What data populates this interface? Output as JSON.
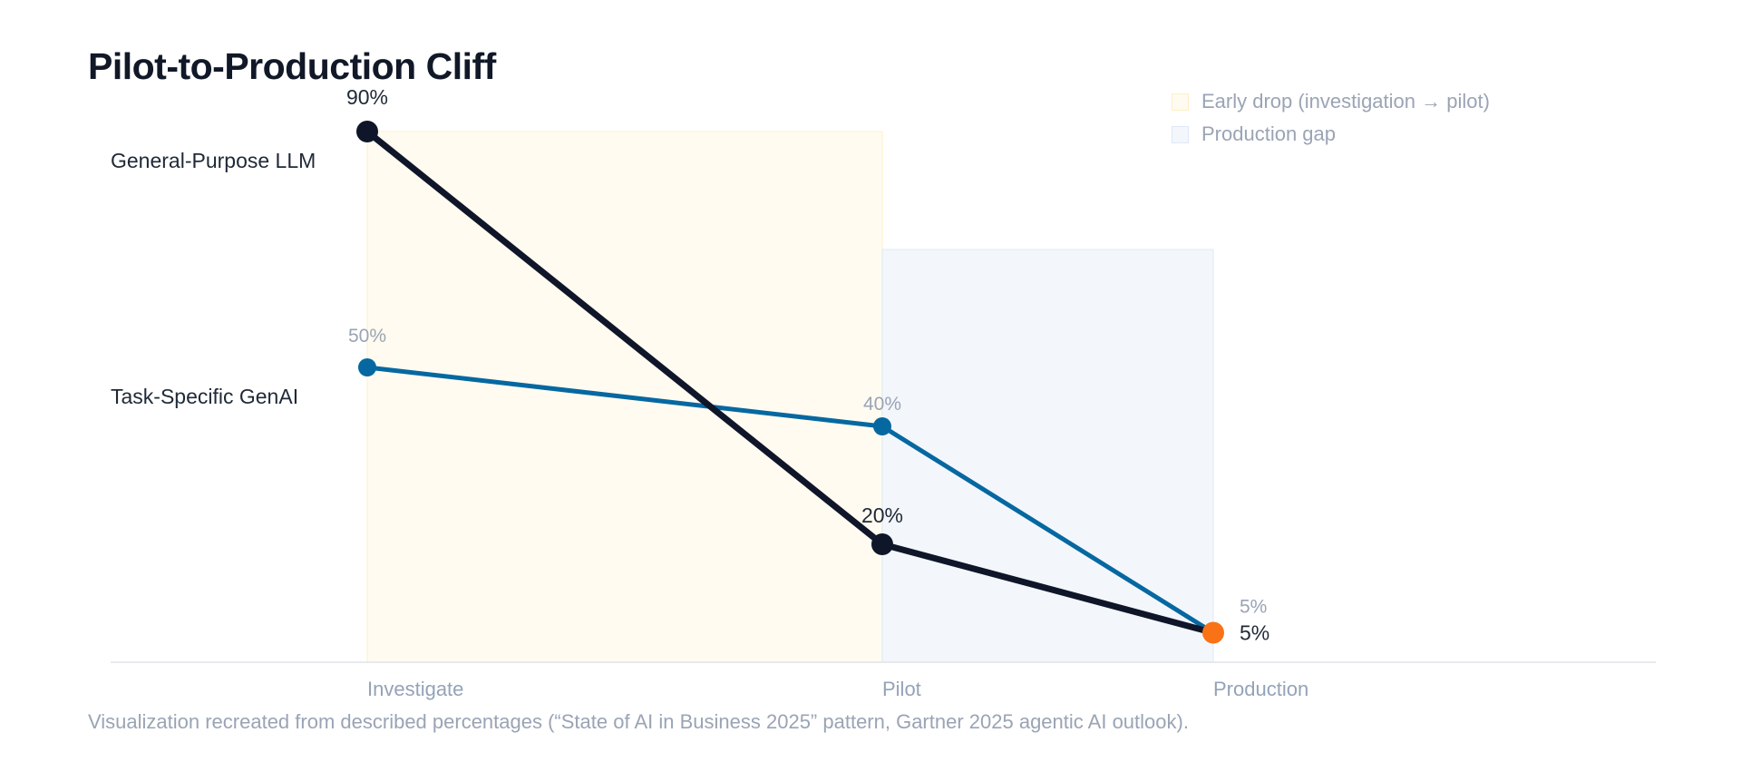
{
  "title": "Pilot-to-Production Cliff",
  "legend": [
    {
      "label": "Early drop (investigation → pilot)",
      "fill": "#fffbf0",
      "stroke": "#fdf0c8"
    },
    {
      "label": "Production gap",
      "fill": "#f3f7fc",
      "stroke": "#dde8f6"
    }
  ],
  "caption": "Visualization recreated from described percentages (“State of AI in Business 2025” pattern, Gartner 2025 agentic AI outlook).",
  "chart_data": {
    "type": "line",
    "title": "Pilot-to-Production Cliff",
    "categories": [
      "Investigate",
      "Pilot",
      "Production"
    ],
    "ylim": [
      0,
      100
    ],
    "grid": false,
    "legend_position": "top-right",
    "series": [
      {
        "name": "General-Purpose LLM",
        "values": [
          90,
          20,
          5
        ],
        "labels": [
          "90%",
          "20%",
          "5%"
        ],
        "color": "#0f1629",
        "label_color": "#1f2937"
      },
      {
        "name": "Task-Specific GenAI",
        "values": [
          50,
          40,
          5
        ],
        "labels": [
          "50%",
          "40%",
          "5%"
        ],
        "color": "#0668a1",
        "label_color": "#9aa4b5"
      }
    ],
    "endpoint_color": "#f97316",
    "shaded_regions": [
      {
        "legend": "Early drop (investigation → pilot)",
        "from": "Investigate",
        "to": "Pilot",
        "top": 90
      },
      {
        "legend": "Production gap",
        "from": "Pilot",
        "to": "Production",
        "top": 70
      }
    ]
  }
}
